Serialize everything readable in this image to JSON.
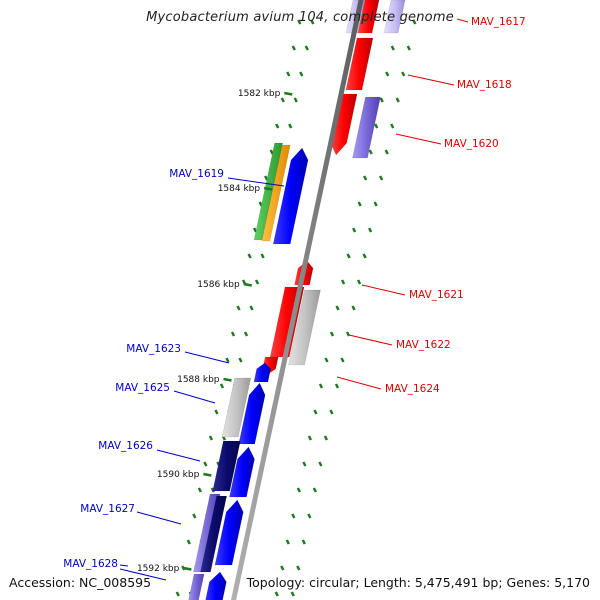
{
  "title": "Mycobacterium avium 104, complete genome",
  "accession": "Accession: NC_008595",
  "topology": "Topology: circular; Length: 5,475,491 bp; Genes: 5,170",
  "colors": {
    "backbone": "#8a8a8a",
    "tick": "#1f7a1f",
    "forward_label": "#0000cc",
    "reverse_label": "#dd0000"
  },
  "kbp_ticks": [
    "1582 kbp",
    "1584 kbp",
    "1586 kbp",
    "1588 kbp",
    "1590 kbp",
    "1592 kbp"
  ],
  "gene_labels": [
    {
      "text": "MAV_1617",
      "strand": "reverse"
    },
    {
      "text": "MAV_1618",
      "strand": "reverse"
    },
    {
      "text": "MAV_1620",
      "strand": "reverse"
    },
    {
      "text": "MAV_1619",
      "strand": "forward"
    },
    {
      "text": "MAV_1621",
      "strand": "reverse"
    },
    {
      "text": "MAV_1622",
      "strand": "reverse"
    },
    {
      "text": "MAV_1624",
      "strand": "reverse"
    },
    {
      "text": "MAV_1623",
      "strand": "forward"
    },
    {
      "text": "MAV_1625",
      "strand": "forward"
    },
    {
      "text": "MAV_1626",
      "strand": "forward"
    },
    {
      "text": "MAV_1627",
      "strand": "forward"
    },
    {
      "text": "MAV_1628",
      "strand": "forward"
    }
  ]
}
